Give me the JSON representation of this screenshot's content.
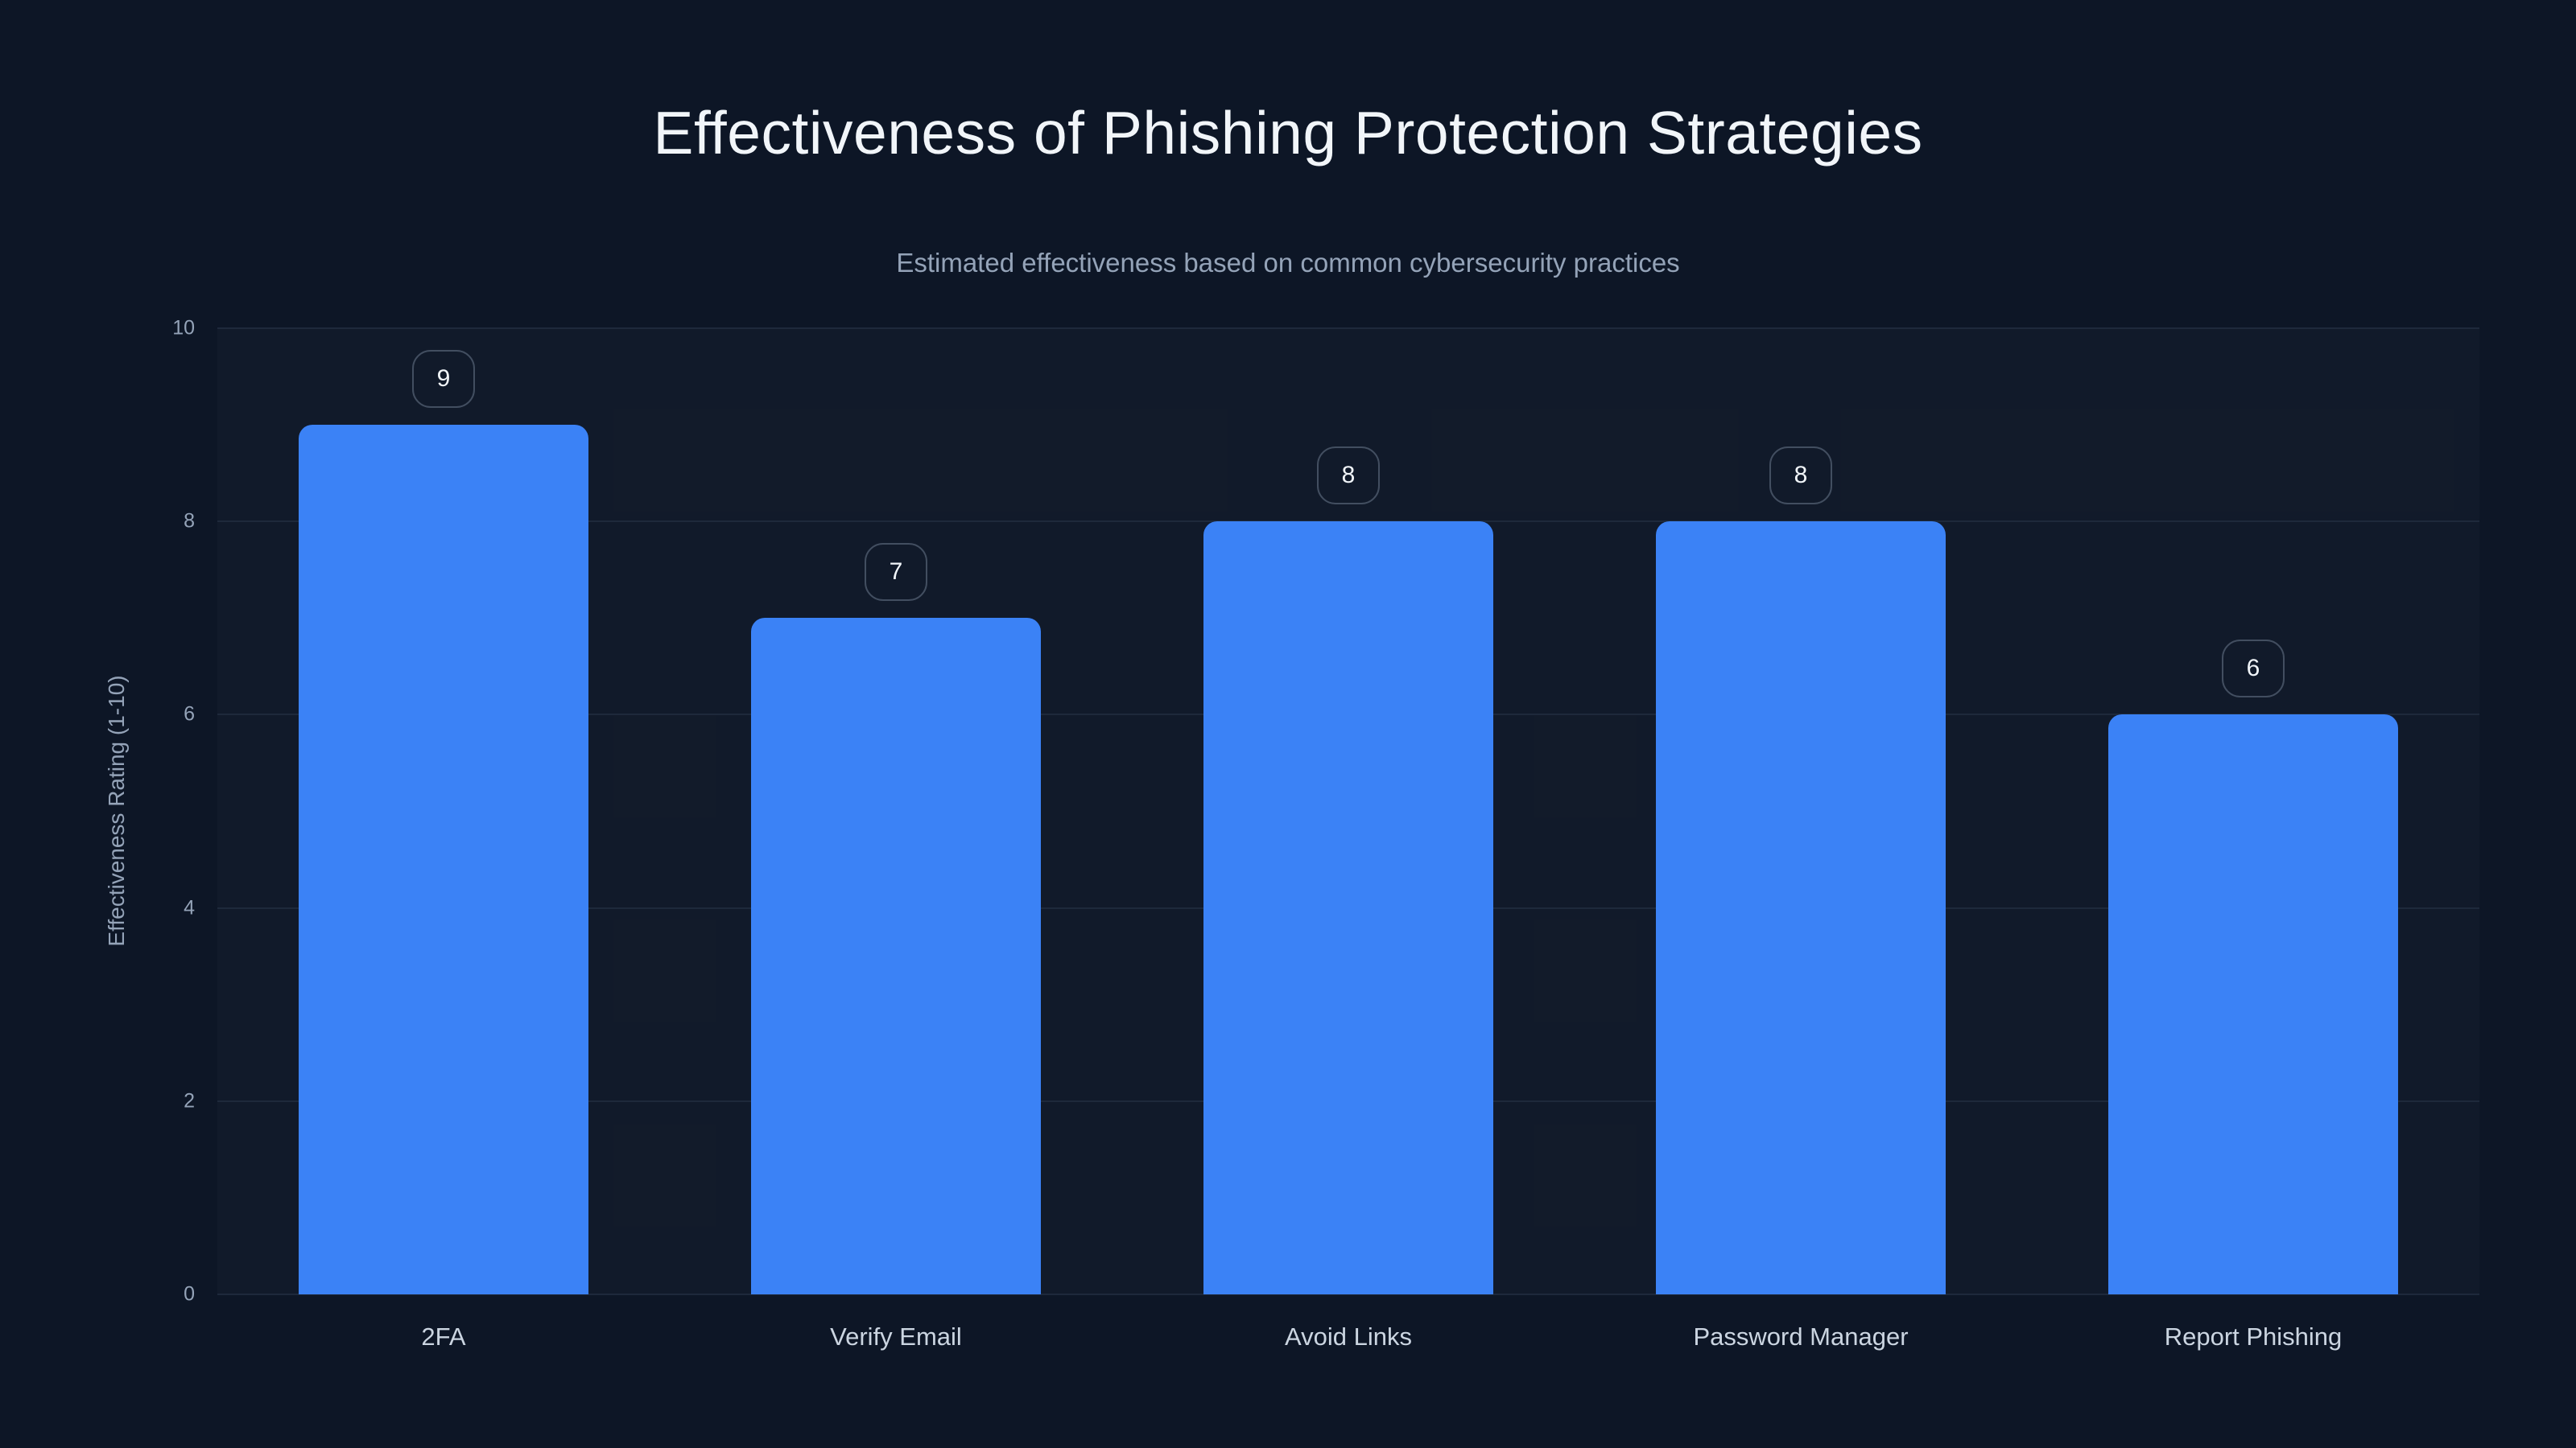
{
  "colors": {
    "background": "#0d1626",
    "bar": "#3b82f6",
    "gridline": "#1e293b",
    "tick_text": "#94a3b8",
    "category_text": "#cbd5e1",
    "title_text": "#f1f5f9",
    "value_chip_border": "rgba(148,163,184,0.38)"
  },
  "chart_data": {
    "type": "bar",
    "title": "Effectiveness of Phishing Protection Strategies",
    "subtitle": "Estimated effectiveness based on common cybersecurity practices",
    "xlabel": "",
    "ylabel": "Effectiveness Rating (1-10)",
    "categories": [
      "2FA",
      "Verify Email",
      "Avoid Links",
      "Password Manager",
      "Report Phishing"
    ],
    "values": [
      9,
      7,
      8,
      8,
      6
    ],
    "value_labels_shown": true,
    "value_label_style": "number in rounded outlined box above each bar",
    "ylim": [
      0,
      10
    ],
    "yticks": [
      0,
      2,
      4,
      6,
      8,
      10
    ],
    "grid": "horizontal",
    "legend_position": "none",
    "background": "dark navy",
    "bar_corner_style": "rounded top corners"
  }
}
